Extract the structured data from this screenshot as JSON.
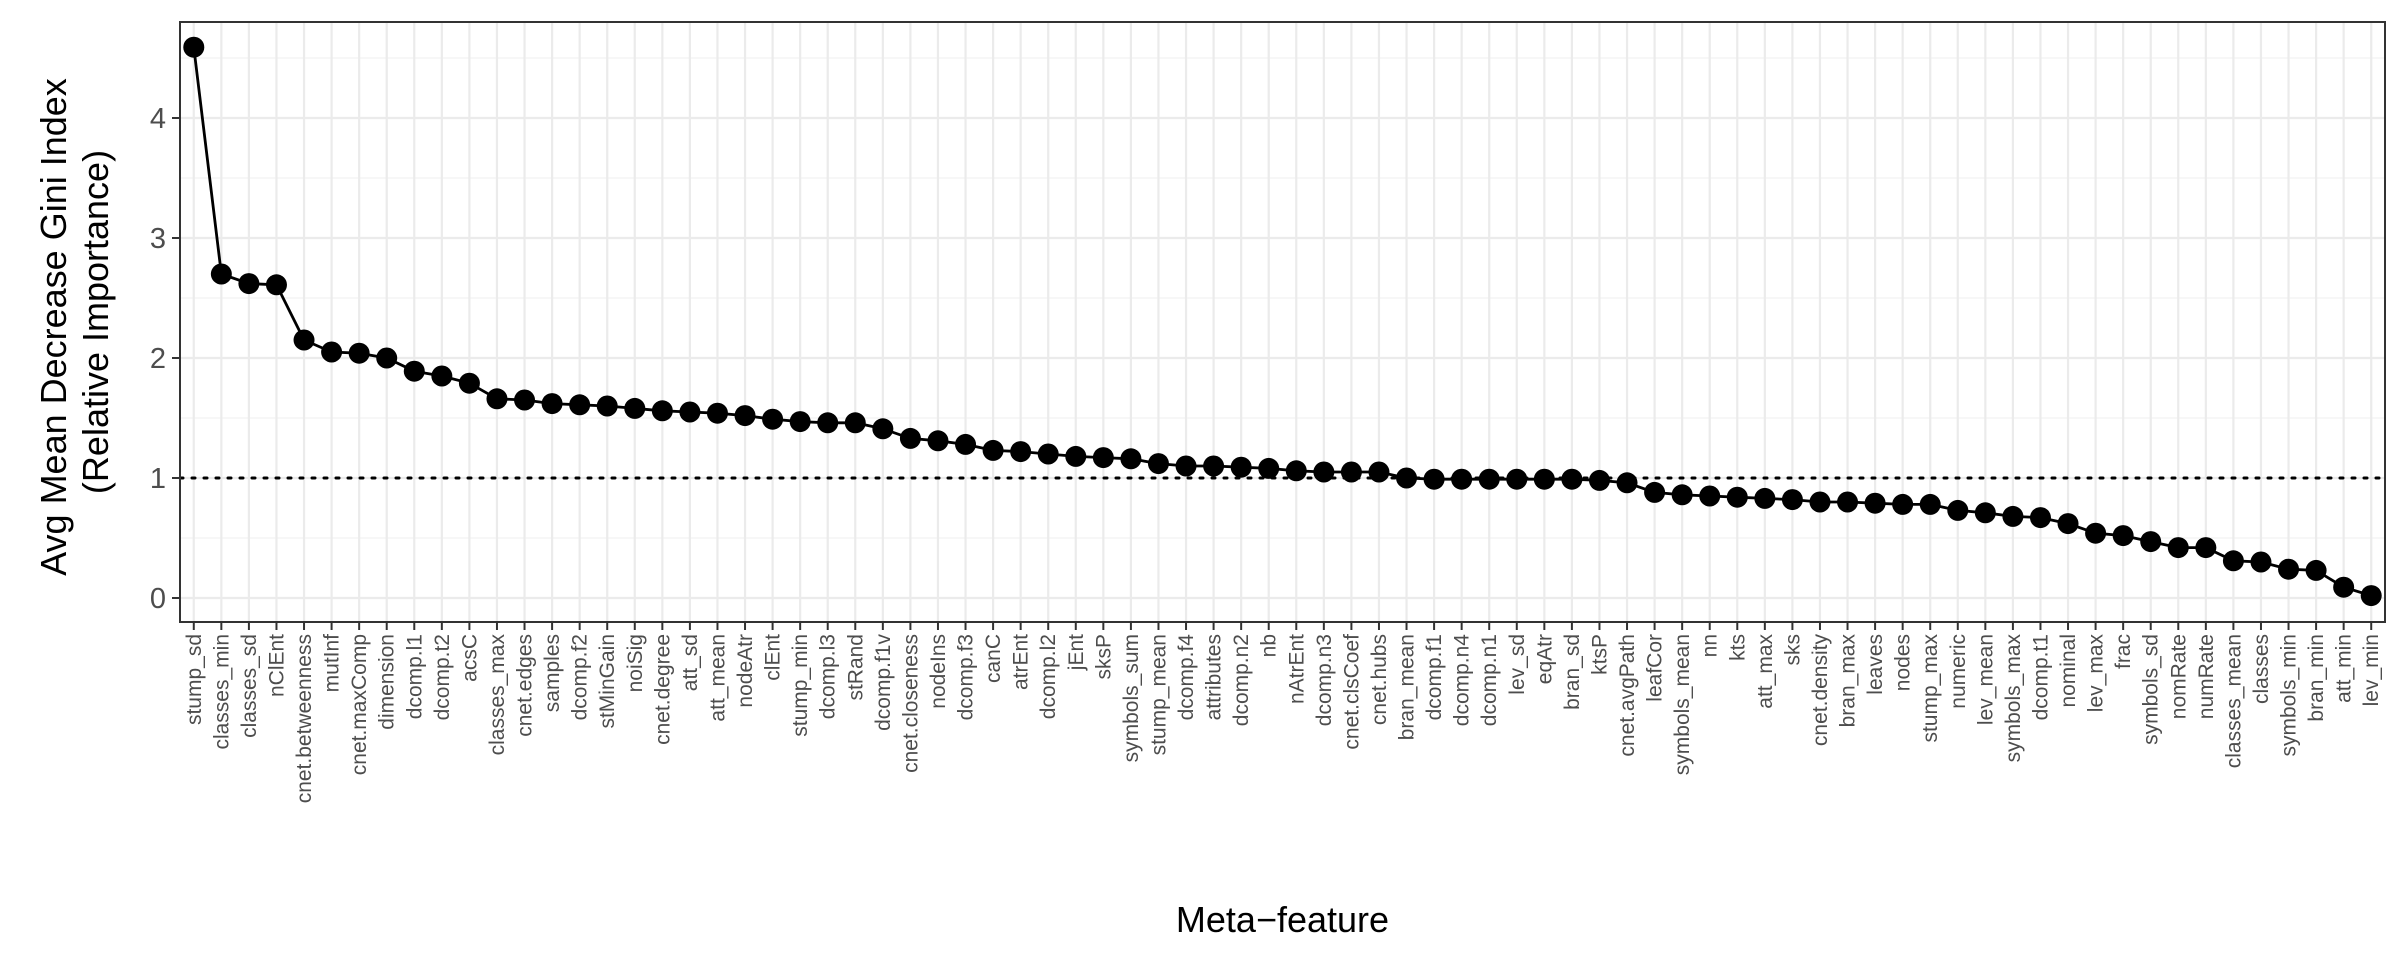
{
  "chart_data": {
    "type": "line",
    "xlabel": "Meta−feature",
    "ylabel": [
      "Avg Mean Decrease Gini Index",
      "(Relative Importance)"
    ],
    "ylim": [
      -0.2,
      4.8
    ],
    "yticks": [
      0,
      1,
      2,
      3,
      4
    ],
    "reference_line": {
      "y": 1,
      "style": "dotted"
    },
    "grid": true,
    "colors": {
      "line": "#000000",
      "points": "#000000",
      "grid": "#ebebeb",
      "panel_border": "#333333"
    },
    "categories": [
      "stump_sd",
      "classes_min",
      "classes_sd",
      "nClEnt",
      "cnet.betweenness",
      "mutInf",
      "cnet.maxComp",
      "dimension",
      "dcomp.l1",
      "dcomp.t2",
      "acsC",
      "classes_max",
      "cnet.edges",
      "samples",
      "dcomp.f2",
      "stMinGain",
      "noiSig",
      "cnet.degree",
      "att_sd",
      "att_mean",
      "nodeAtr",
      "clEnt",
      "stump_min",
      "dcomp.l3",
      "stRand",
      "dcomp.f1v",
      "cnet.closeness",
      "nodeIns",
      "dcomp.f3",
      "canC",
      "atrEnt",
      "dcomp.l2",
      "jEnt",
      "sksP",
      "symbols_sum",
      "stump_mean",
      "dcomp.f4",
      "attributes",
      "dcomp.n2",
      "nb",
      "nAtrEnt",
      "dcomp.n3",
      "cnet.clsCoef",
      "cnet.hubs",
      "bran_mean",
      "dcomp.f1",
      "dcomp.n4",
      "dcomp.n1",
      "lev_sd",
      "eqAtr",
      "bran_sd",
      "ktsP",
      "cnet.avgPath",
      "leafCor",
      "symbols_mean",
      "nn",
      "kts",
      "att_max",
      "sks",
      "cnet.density",
      "bran_max",
      "leaves",
      "nodes",
      "stump_max",
      "numeric",
      "lev_mean",
      "symbols_max",
      "dcomp.t1",
      "nominal",
      "lev_max",
      "frac",
      "symbols_sd",
      "nomRate",
      "numRate",
      "classes_mean",
      "classes",
      "symbols_min",
      "bran_min",
      "att_min",
      "lev_min"
    ],
    "values": [
      4.59,
      2.7,
      2.62,
      2.61,
      2.15,
      2.05,
      2.04,
      2.0,
      1.89,
      1.85,
      1.79,
      1.66,
      1.65,
      1.62,
      1.61,
      1.6,
      1.58,
      1.56,
      1.55,
      1.54,
      1.52,
      1.49,
      1.47,
      1.46,
      1.46,
      1.41,
      1.33,
      1.31,
      1.28,
      1.23,
      1.22,
      1.2,
      1.18,
      1.17,
      1.16,
      1.12,
      1.1,
      1.1,
      1.09,
      1.08,
      1.06,
      1.05,
      1.05,
      1.05,
      1.0,
      0.99,
      0.99,
      0.99,
      0.99,
      0.99,
      0.99,
      0.98,
      0.96,
      0.88,
      0.86,
      0.85,
      0.84,
      0.83,
      0.82,
      0.8,
      0.8,
      0.79,
      0.78,
      0.78,
      0.73,
      0.71,
      0.68,
      0.67,
      0.62,
      0.54,
      0.52,
      0.47,
      0.42,
      0.42,
      0.31,
      0.3,
      0.24,
      0.23,
      0.09,
      0.02
    ]
  }
}
